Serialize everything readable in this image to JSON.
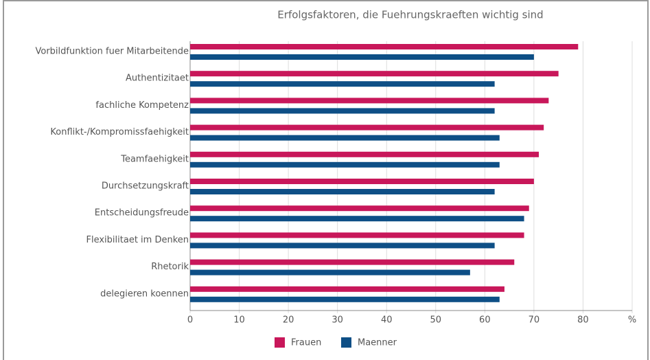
{
  "chart_data": {
    "type": "barh",
    "title": "Erfolgsfaktoren, die Fuehrungskraeften wichtig sind",
    "categories": [
      "Vorbildfunktion fuer Mitarbeitende",
      "Authentizitaet",
      "fachliche Kompetenz",
      "Konflikt-/Kompromissfaehigkeit",
      "Teamfaehigkeit",
      "Durchsetzungskraft",
      "Entscheidungsfreude",
      "Flexibilitaet im Denken",
      "Rhetorik",
      "delegieren koennen"
    ],
    "series": [
      {
        "name": "Frauen",
        "color": "#c8175a",
        "values": [
          79,
          75,
          73,
          72,
          71,
          70,
          69,
          68,
          66,
          64
        ]
      },
      {
        "name": "Maenner",
        "color": "#0e4f86",
        "values": [
          70,
          62,
          62,
          63,
          63,
          62,
          68,
          62,
          57,
          63
        ]
      }
    ],
    "xlim": [
      0,
      90
    ],
    "xticks": [
      0,
      10,
      20,
      30,
      40,
      50,
      60,
      70,
      80,
      {
        "value": 90,
        "label": "%"
      }
    ],
    "grid": true,
    "legend": "bottom"
  }
}
